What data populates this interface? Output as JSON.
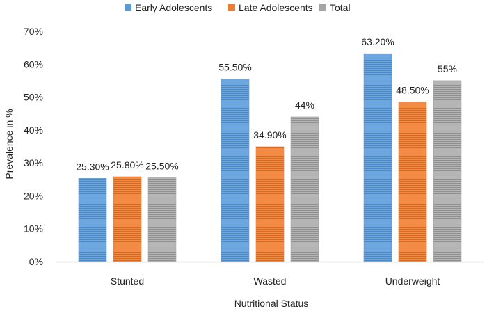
{
  "chart_data": {
    "type": "bar",
    "title": "",
    "xlabel": "Nutritional Status",
    "ylabel": "Prevalence in %",
    "categories": [
      "Stunted",
      "Wasted",
      "Underweight"
    ],
    "series": [
      {
        "name": "Early Adolescents",
        "values": [
          25.3,
          55.5,
          63.2
        ],
        "labels": [
          "25.30%",
          "55.50%",
          "63.20%"
        ],
        "color": "#5b9bd5"
      },
      {
        "name": "Late Adolescents",
        "values": [
          25.8,
          34.9,
          48.5
        ],
        "labels": [
          "25.80%",
          "34.90%",
          "48.50%"
        ],
        "color": "#ed7d31"
      },
      {
        "name": "Total",
        "values": [
          25.5,
          44,
          55
        ],
        "labels": [
          "25.50%",
          "44%",
          "55%"
        ],
        "color": "#a5a5a5"
      }
    ],
    "ylim": [
      0,
      70
    ],
    "yticks": [
      0,
      10,
      20,
      30,
      40,
      50,
      60,
      70
    ],
    "ytick_labels": [
      "0%",
      "10%",
      "20%",
      "30%",
      "40%",
      "50%",
      "60%",
      "70%"
    ],
    "grid": false,
    "legend": "top"
  }
}
